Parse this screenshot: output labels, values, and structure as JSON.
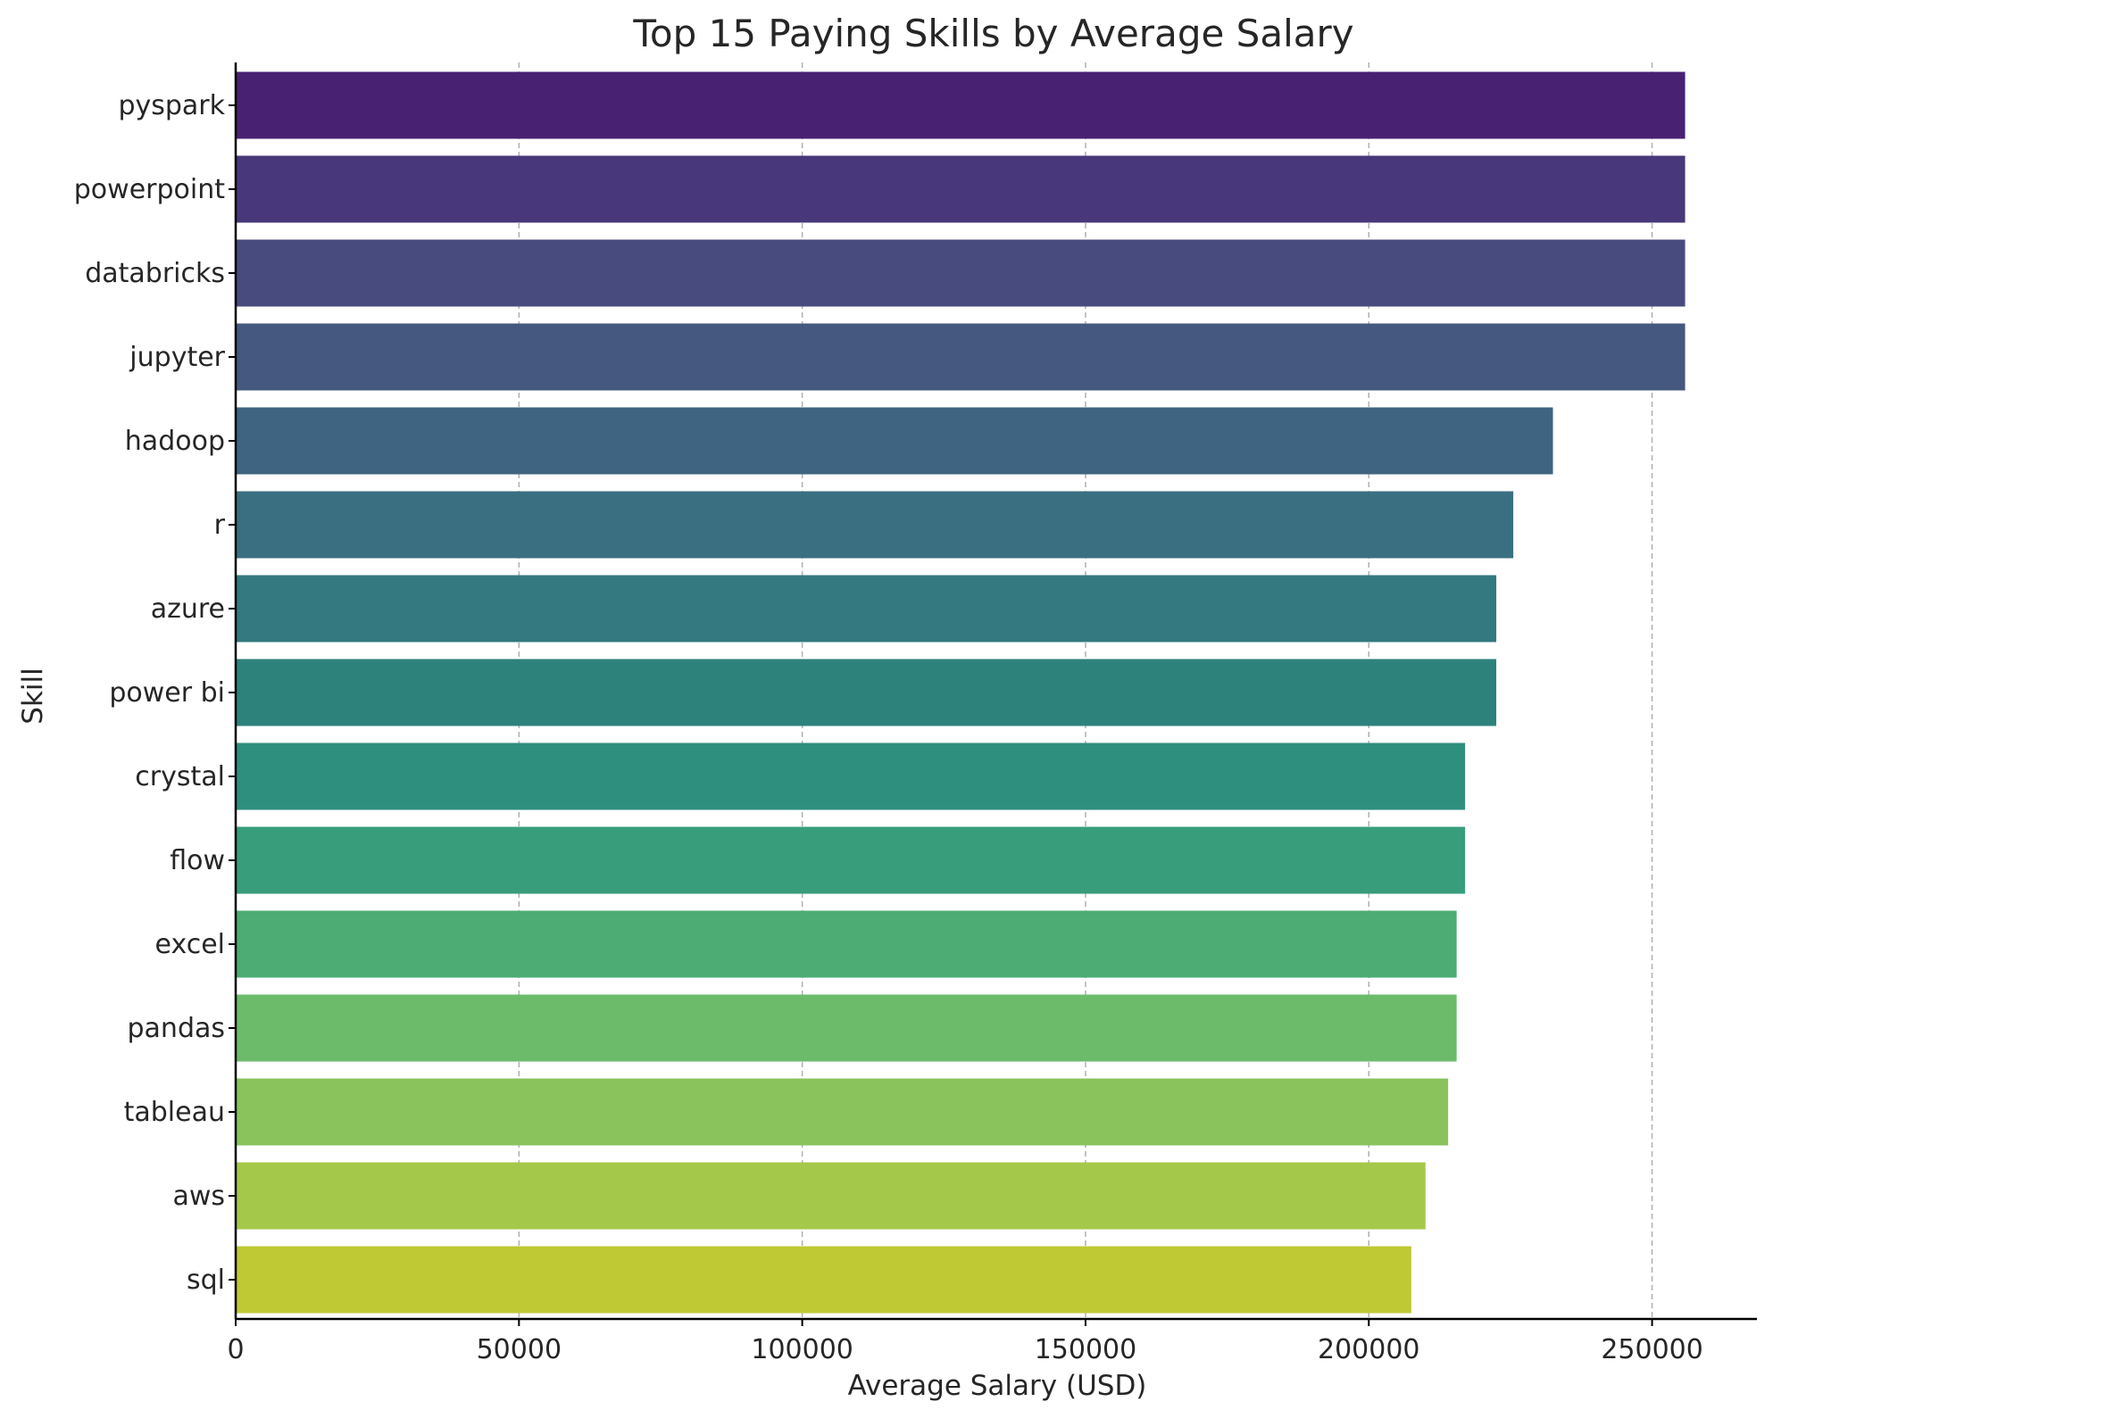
{
  "chart_data": {
    "type": "bar",
    "orientation": "horizontal",
    "title": "Top 15 Paying Skills by Average Salary",
    "xlabel": "Average Salary (USD)",
    "ylabel": "Skill",
    "xlim": [
      0,
      268500
    ],
    "xticks": [
      0,
      50000,
      100000,
      150000,
      200000,
      250000
    ],
    "grid": "x-dashed",
    "categories": [
      "pyspark",
      "powerpoint",
      "databricks",
      "jupyter",
      "hadoop",
      "r",
      "azure",
      "power bi",
      "crystal",
      "flow",
      "excel",
      "pandas",
      "tableau",
      "aws",
      "sql"
    ],
    "values": [
      255829,
      255829,
      255829,
      255829,
      232500,
      225500,
      222500,
      222500,
      217000,
      217000,
      215500,
      215500,
      214000,
      210000,
      207500
    ],
    "colors": [
      "#482172",
      "#48377a",
      "#484b7d",
      "#45587f",
      "#3e6481",
      "#3a6f81",
      "#33797f",
      "#2e827c",
      "#2e8f7f",
      "#379d7a",
      "#4cac73",
      "#6bbb6b",
      "#8ac35c",
      "#a4c84a",
      "#bfc934"
    ]
  }
}
